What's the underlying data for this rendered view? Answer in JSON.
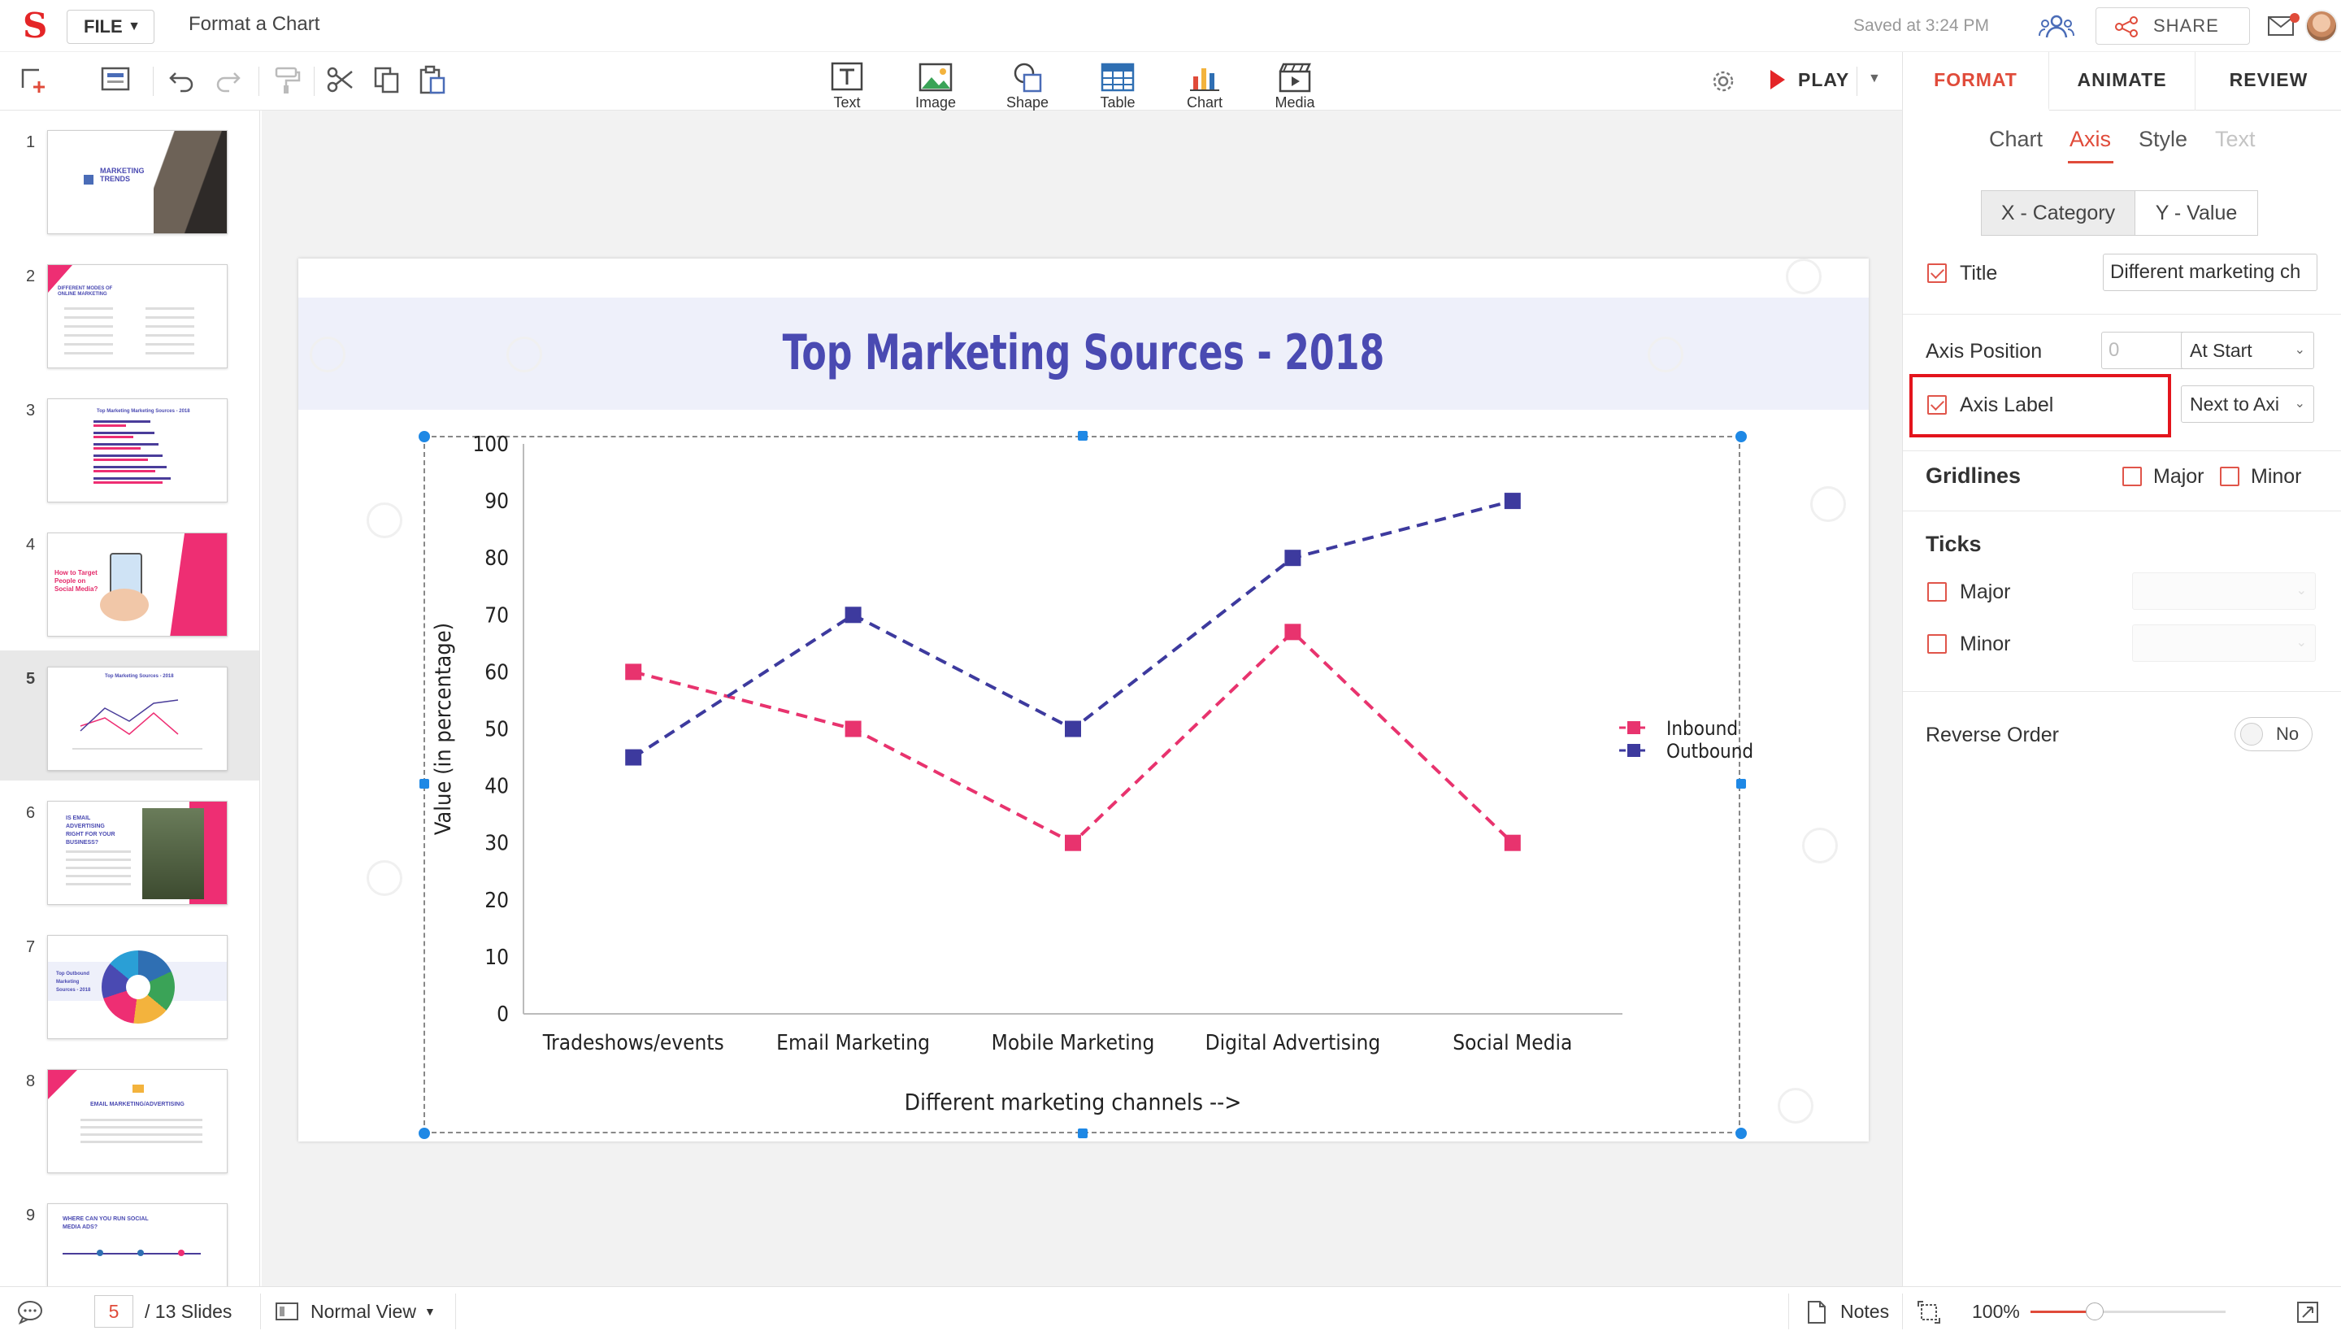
{
  "app": {
    "file_label": "FILE",
    "doc_title": "Format a Chart",
    "saved_text": "Saved at 3:24 PM",
    "share_label": "SHARE"
  },
  "toolbar": {
    "insert": [
      {
        "label": "Text",
        "icon": "text-box-icon"
      },
      {
        "label": "Image",
        "icon": "image-icon"
      },
      {
        "label": "Shape",
        "icon": "shape-icon"
      },
      {
        "label": "Table",
        "icon": "table-icon"
      },
      {
        "label": "Chart",
        "icon": "chart-icon"
      },
      {
        "label": "Media",
        "icon": "media-icon"
      }
    ],
    "play_label": "PLAY"
  },
  "panel": {
    "tabs": [
      "FORMAT",
      "ANIMATE",
      "REVIEW"
    ],
    "active_tab": "FORMAT",
    "subtabs": [
      "Chart",
      "Axis",
      "Style",
      "Text"
    ],
    "active_subtab": "Axis",
    "axis_segments": [
      "X - Category",
      "Y - Value"
    ],
    "active_segment": "X - Category",
    "title_label": "Title",
    "title_checked": true,
    "title_value": "Different marketing ch",
    "axis_position_label": "Axis Position",
    "axis_position_value": "0",
    "axis_position_select": "At Start",
    "axis_label_label": "Axis Label",
    "axis_label_checked": true,
    "axis_label_select": "Next to Axi",
    "gridlines_label": "Gridlines",
    "gridlines_major": "Major",
    "gridlines_minor": "Minor",
    "ticks_label": "Ticks",
    "ticks_major": "Major",
    "ticks_minor": "Minor",
    "reverse_order_label": "Reverse Order",
    "reverse_order_value": "No"
  },
  "thumbnails": [
    {
      "num": "1",
      "text": "MARKETING TRENDS"
    },
    {
      "num": "2",
      "text": "DIFFERENT MODES OF ONLINE MARKETING"
    },
    {
      "num": "3",
      "text": "Top Marketing Marketing Sources - 2018"
    },
    {
      "num": "4",
      "text": "How to Target People on Social Media?"
    },
    {
      "num": "5",
      "text": "Top Marketing Sources - 2018"
    },
    {
      "num": "6",
      "text": "IS EMAIL ADVERTISING RIGHT FOR YOUR BUSINESS?"
    },
    {
      "num": "7",
      "text": "Top Outbound Marketing Sources - 2018"
    },
    {
      "num": "8",
      "text": "EMAIL MARKETING/ADVERTISING"
    },
    {
      "num": "9",
      "text": "WHERE CAN YOU RUN SOCIAL MEDIA ADS?"
    }
  ],
  "active_slide": "5",
  "slide": {
    "title": "Top Marketing Sources - 2018"
  },
  "chart_data": {
    "type": "line",
    "title": "",
    "categories": [
      "Tradeshows/events",
      "Email Marketing",
      "Mobile Marketing",
      "Digital Advertising",
      "Social Media"
    ],
    "series": [
      {
        "name": "Inbound",
        "values": [
          60,
          50,
          30,
          67,
          30
        ],
        "color": "#e8336e"
      },
      {
        "name": "Outbound",
        "values": [
          45,
          70,
          50,
          80,
          90
        ],
        "color": "#3d3a9e"
      }
    ],
    "xlabel": "Different marketing channels -->",
    "ylabel": "Value (in percentage)",
    "ylim": [
      0,
      100
    ],
    "yticks": [
      0,
      10,
      20,
      30,
      40,
      50,
      60,
      70,
      80,
      90,
      100
    ],
    "grid": false,
    "legend": "right"
  },
  "status": {
    "page": "5",
    "slides_text": "/ 13 Slides",
    "view_label": "Normal View",
    "notes_label": "Notes",
    "zoom_label": "100%",
    "zoom_value": 0.33
  }
}
